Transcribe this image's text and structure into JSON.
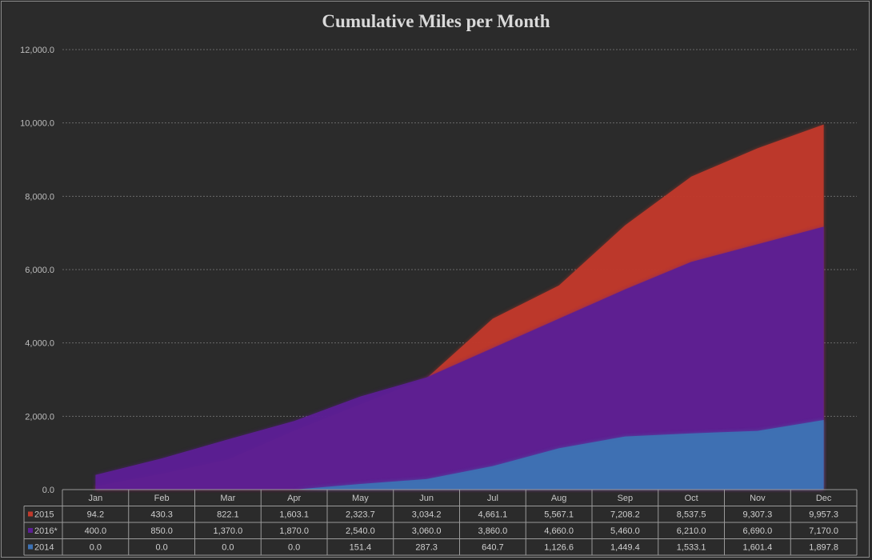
{
  "chart_data": {
    "type": "area",
    "title": "Cumulative Miles per Month",
    "categories": [
      "Jan",
      "Feb",
      "Mar",
      "Apr",
      "May",
      "Jun",
      "Jul",
      "Aug",
      "Sep",
      "Oct",
      "Nov",
      "Dec"
    ],
    "ylim": [
      0,
      12000
    ],
    "yticks": [
      "0.0",
      "2,000.0",
      "4,000.0",
      "6,000.0",
      "8,000.0",
      "10,000.0",
      "12,000.0"
    ],
    "grid": true,
    "legend": "data-table",
    "series": [
      {
        "name": "2015",
        "color": "#c0392b",
        "values": [
          94.2,
          430.3,
          822.1,
          1603.1,
          2323.7,
          3034.2,
          4661.1,
          5567.1,
          7208.2,
          8537.5,
          9307.3,
          9957.3
        ],
        "labels": [
          "94.2",
          "430.3",
          "822.1",
          "1,603.1",
          "2,323.7",
          "3,034.2",
          "4,661.1",
          "5,567.1",
          "7,208.2",
          "8,537.5",
          "9,307.3",
          "9,957.3"
        ]
      },
      {
        "name": "2016*",
        "color": "#5c1f94",
        "values": [
          400.0,
          850.0,
          1370.0,
          1870.0,
          2540.0,
          3060.0,
          3860.0,
          4660.0,
          5460.0,
          6210.0,
          6690.0,
          7170.0
        ],
        "labels": [
          "400.0",
          "850.0",
          "1,370.0",
          "1,870.0",
          "2,540.0",
          "3,060.0",
          "3,860.0",
          "4,660.0",
          "5,460.0",
          "6,210.0",
          "6,690.0",
          "7,170.0"
        ]
      },
      {
        "name": "2014",
        "color": "#3d72b4",
        "values": [
          0.0,
          0.0,
          0.0,
          0.0,
          151.4,
          287.3,
          640.7,
          1126.6,
          1449.4,
          1533.1,
          1601.4,
          1897.8
        ],
        "labels": [
          "0.0",
          "0.0",
          "0.0",
          "0.0",
          "151.4",
          "287.3",
          "640.7",
          "1,126.6",
          "1,449.4",
          "1,533.1",
          "1,601.4",
          "1,897.8"
        ]
      }
    ]
  }
}
